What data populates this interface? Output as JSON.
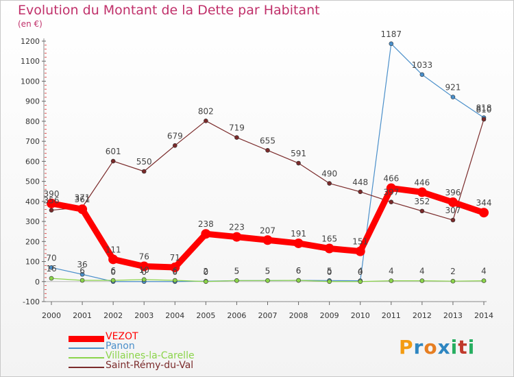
{
  "title": "Evolution du Montant de la Dette par Habitant",
  "unit_label": "(en €)",
  "logo": {
    "text": "Proxiti",
    "letters": [
      "P",
      "r",
      "o",
      "x",
      "i",
      "t",
      "i"
    ],
    "colors": [
      "#f39c12",
      "#2e86c1",
      "#e67e22",
      "#2e86c1",
      "#27ae60",
      "#c0392b",
      "#27ae60"
    ]
  },
  "chart_data": {
    "type": "line",
    "title": "Evolution du Montant de la Dette par Habitant",
    "ylabel": "(en €)",
    "x": [
      "2000",
      "2001",
      "2002",
      "2003",
      "2004",
      "2005",
      "2006",
      "2007",
      "2008",
      "2009",
      "2010",
      "2011",
      "2012",
      "2013",
      "2014"
    ],
    "ylim": [
      -100,
      1200
    ],
    "yticks": [
      -100,
      0,
      100,
      200,
      300,
      400,
      500,
      600,
      700,
      800,
      900,
      1000,
      1100,
      1200
    ],
    "grid": false,
    "legend_position": "bottom-left",
    "series": [
      {
        "name": "VEZOT",
        "color": "#ff0000",
        "values": [
          390,
          361,
          111,
          76,
          71,
          238,
          223,
          207,
          191,
          165,
          151,
          466,
          446,
          396,
          344
        ],
        "labels": [
          "390",
          "361",
          "111",
          "76",
          "71",
          "238",
          "223",
          "207",
          "191",
          "165",
          "151",
          "466",
          "446",
          "396",
          "344"
        ]
      },
      {
        "name": "Panon",
        "color": "#4a8fca",
        "values": [
          70,
          36,
          0,
          0,
          0,
          2,
          5,
          5,
          6,
          5,
          4,
          1187,
          1033,
          921,
          818
        ],
        "labels": [
          "70",
          "36",
          "0",
          "0",
          "0",
          "2",
          "5",
          "5",
          "6",
          "5",
          "4",
          "1187",
          "1033",
          "921",
          "818"
        ]
      },
      {
        "name": "Villaines-la-Carelle",
        "color": "#8bd44a",
        "values": [
          16,
          6,
          6,
          10,
          6,
          0,
          5,
          5,
          6,
          0,
          0,
          4,
          4,
          2,
          4
        ],
        "labels": [
          "16",
          "6",
          "6",
          "10",
          "6",
          "0",
          "5",
          "5",
          "6",
          "0",
          "0",
          "4",
          "4",
          "2",
          "4"
        ]
      },
      {
        "name": "Saint-Rémy-du-Val",
        "color": "#7a2a2a",
        "values": [
          356,
          371,
          601,
          550,
          679,
          802,
          719,
          655,
          591,
          490,
          448,
          397,
          352,
          307,
          810
        ],
        "labels": [
          "356",
          "371",
          "601",
          "550",
          "679",
          "802",
          "719",
          "655",
          "591",
          "490",
          "448",
          "397",
          "352",
          "307",
          "810"
        ]
      }
    ]
  }
}
